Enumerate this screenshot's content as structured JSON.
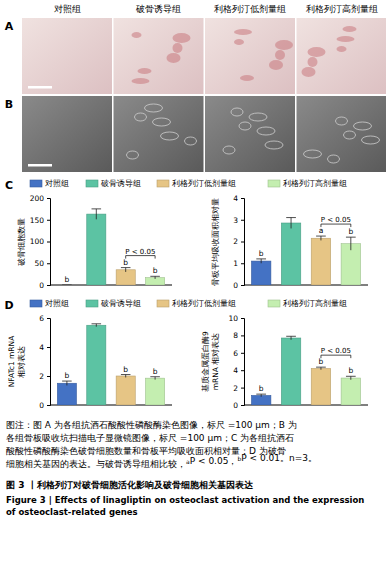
{
  "figure": {
    "column_headers": [
      "对照组",
      "破骨诱导组",
      "利格列汀低剂量组",
      "利格列汀高剂量组"
    ],
    "panel_labels": [
      "A",
      "B",
      "C",
      "D"
    ],
    "caption_lines": [
      "图注：图 A 为各组抗酒石酸酸性磷酸酶染色图像，标尺 =100 μm；B 为",
      "各组骨板吸收坑扫描电子显微镜图像，标尺 =100 μm；C 为各组抗酒石",
      "酸酸性磷酸酶染色破骨细胞数量和骨板平均吸收面积相对量；D 为破骨",
      [
        "细胞相关基因的表达。与破骨诱导组相比较，",
        {
          "sup": "a"
        },
        "P < 0.05，",
        {
          "sup": "b"
        },
        "P < 0.01。n=3。"
      ]
    ],
    "title_zh": "图 3 丨利格列汀对破骨细胞活化影响及破骨细胞相关基因表达",
    "title_en": [
      "Figure 3 | Effects of linagliptin on osteoclast activation and the expression",
      "of osteoclast-related genes"
    ]
  },
  "chart_data": [
    {
      "type": "bar",
      "y_label": [
        "破骨细胞数量"
      ],
      "categories": [
        "对照组",
        "破骨诱导组",
        "利格列汀低剂量组",
        "利格列汀高剂量组"
      ],
      "values": [
        0,
        163,
        35,
        17
      ],
      "errors": [
        0,
        12,
        5,
        3
      ],
      "colors": [
        "#4472c4",
        "#5cc3a3",
        "#e6c585",
        "#c4eeb0"
      ],
      "ylim": [
        0,
        200
      ],
      "yticks": [
        0,
        50,
        100,
        150,
        200
      ],
      "tick_labels": "y",
      "letters": [
        "b",
        null,
        "b",
        "b"
      ],
      "comparison": {
        "between": [
          "利格列汀低剂量组",
          "利格列汀高剂量组"
        ],
        "label": "P < 0.05"
      }
    },
    {
      "type": "bar",
      "y_label": [
        "骨板平均吸收面积相对量"
      ],
      "categories": [
        "对照组",
        "破骨诱导组",
        "利格列汀低剂量组",
        "利格列汀高剂量组"
      ],
      "values": [
        1.1,
        2.85,
        2.15,
        1.9
      ],
      "errors": [
        0.1,
        0.25,
        0.1,
        0.3
      ],
      "colors": [
        "#4472c4",
        "#5cc3a3",
        "#e6c585",
        "#c4eeb0"
      ],
      "ylim": [
        0,
        4
      ],
      "yticks": [
        0,
        1,
        2,
        3,
        4
      ],
      "tick_labels": "y",
      "letters": [
        "b",
        null,
        "a",
        "b"
      ],
      "comparison": {
        "between": [
          "利格列汀低剂量组",
          "利格列汀高剂量组"
        ],
        "label": "P < 0.05"
      }
    },
    {
      "type": "bar",
      "y_label": [
        "NFATc1 mRNA",
        "相对表达"
      ],
      "categories": [
        "对照组",
        "破骨诱导组",
        "利格列汀低剂量组",
        "利格列汀高剂量组"
      ],
      "values": [
        1.5,
        5.5,
        2.0,
        1.85
      ],
      "errors": [
        0.15,
        0.1,
        0.1,
        0.1
      ],
      "colors": [
        "#4472c4",
        "#5cc3a3",
        "#e6c585",
        "#c4eeb0"
      ],
      "ylim": [
        0,
        6
      ],
      "yticks": [
        0,
        2,
        4,
        6
      ],
      "tick_labels": "y",
      "letters": [
        "b",
        null,
        "b",
        "b"
      ]
    },
    {
      "type": "bar",
      "y_label": [
        "基质金属蛋白酶9",
        "mRNA 相对表达"
      ],
      "categories": [
        "对照组",
        "破骨诱导组",
        "利格列汀低剂量组",
        "利格列汀高剂量组"
      ],
      "values": [
        1.1,
        7.7,
        4.2,
        3.1
      ],
      "errors": [
        0.15,
        0.2,
        0.15,
        0.2
      ],
      "colors": [
        "#4472c4",
        "#5cc3a3",
        "#e6c585",
        "#c4eeb0"
      ],
      "ylim": [
        0,
        10
      ],
      "yticks": [
        0,
        2,
        4,
        6,
        8,
        10
      ],
      "tick_labels": "y",
      "letters": [
        "b",
        null,
        "b",
        "b"
      ],
      "comparison": {
        "between": [
          "利格列汀低剂量组",
          "利格列汀高剂量组"
        ],
        "label": "P < 0.05"
      }
    }
  ]
}
